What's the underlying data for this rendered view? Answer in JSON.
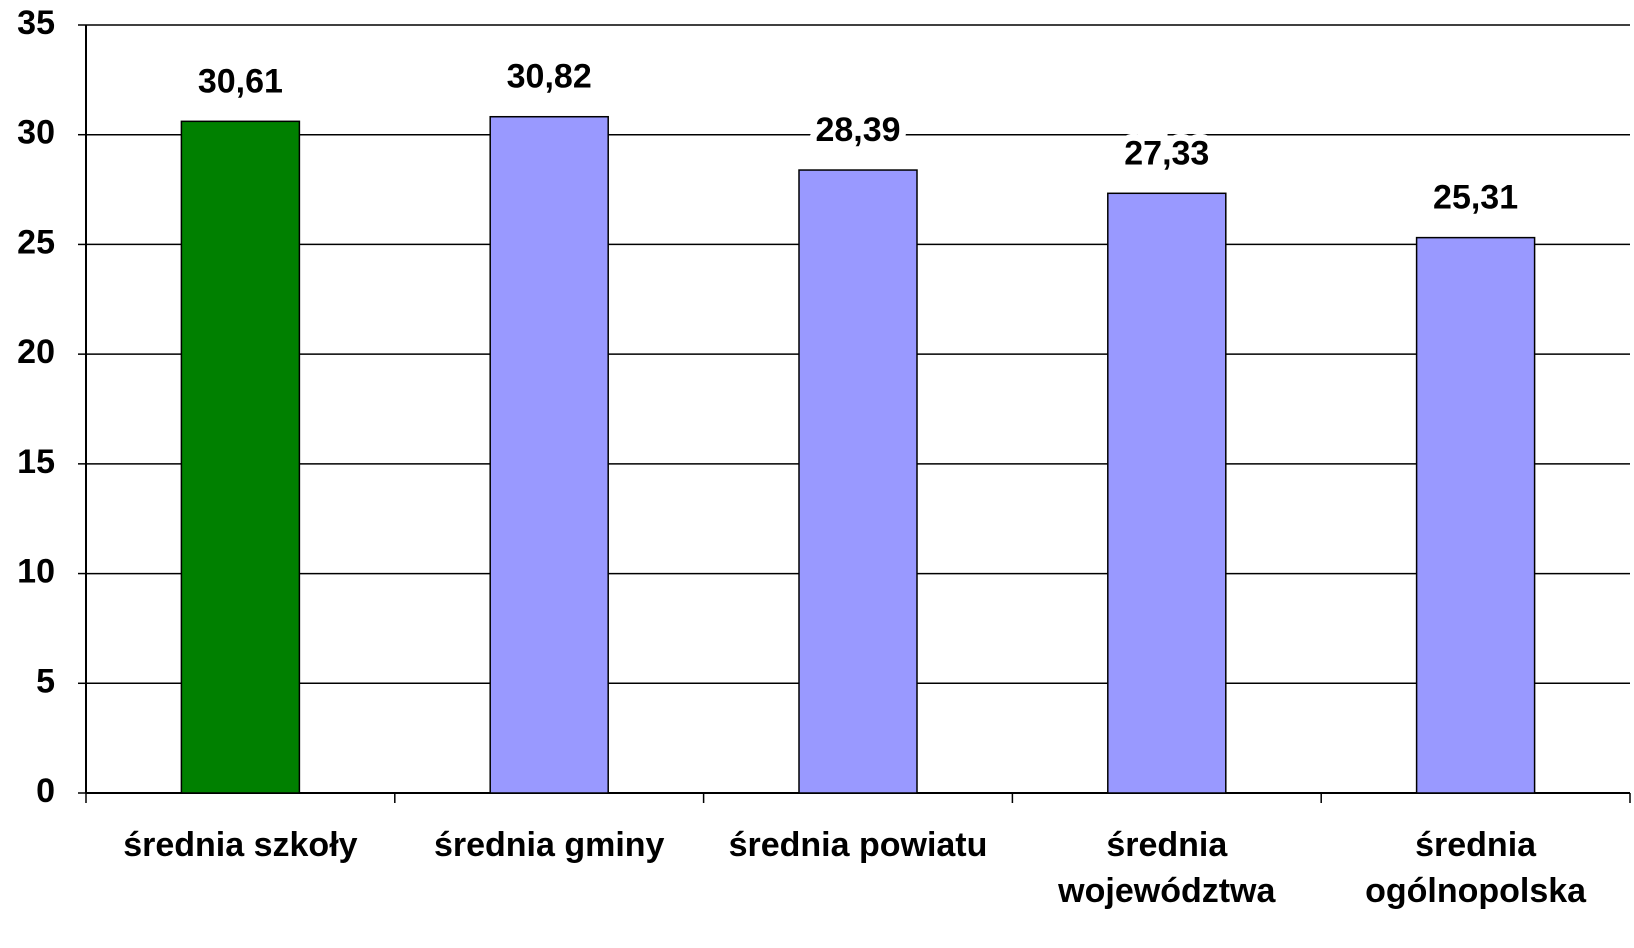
{
  "chart_data": {
    "type": "bar",
    "categories": [
      "średnia szkoły",
      "średnia gminy",
      "średnia powiatu",
      "średnia województwa",
      "średnia ogólnopolska"
    ],
    "values": [
      30.61,
      30.82,
      28.39,
      27.33,
      25.31
    ],
    "value_labels": [
      "30,61",
      "30,82",
      "28,39",
      "27,33",
      "25,31"
    ],
    "colors": [
      "#008000",
      "#9999ff",
      "#9999ff",
      "#9999ff",
      "#9999ff"
    ],
    "ylim": [
      0,
      35
    ],
    "yticks": [
      0,
      5,
      10,
      15,
      20,
      25,
      30,
      35
    ],
    "grid": true
  }
}
